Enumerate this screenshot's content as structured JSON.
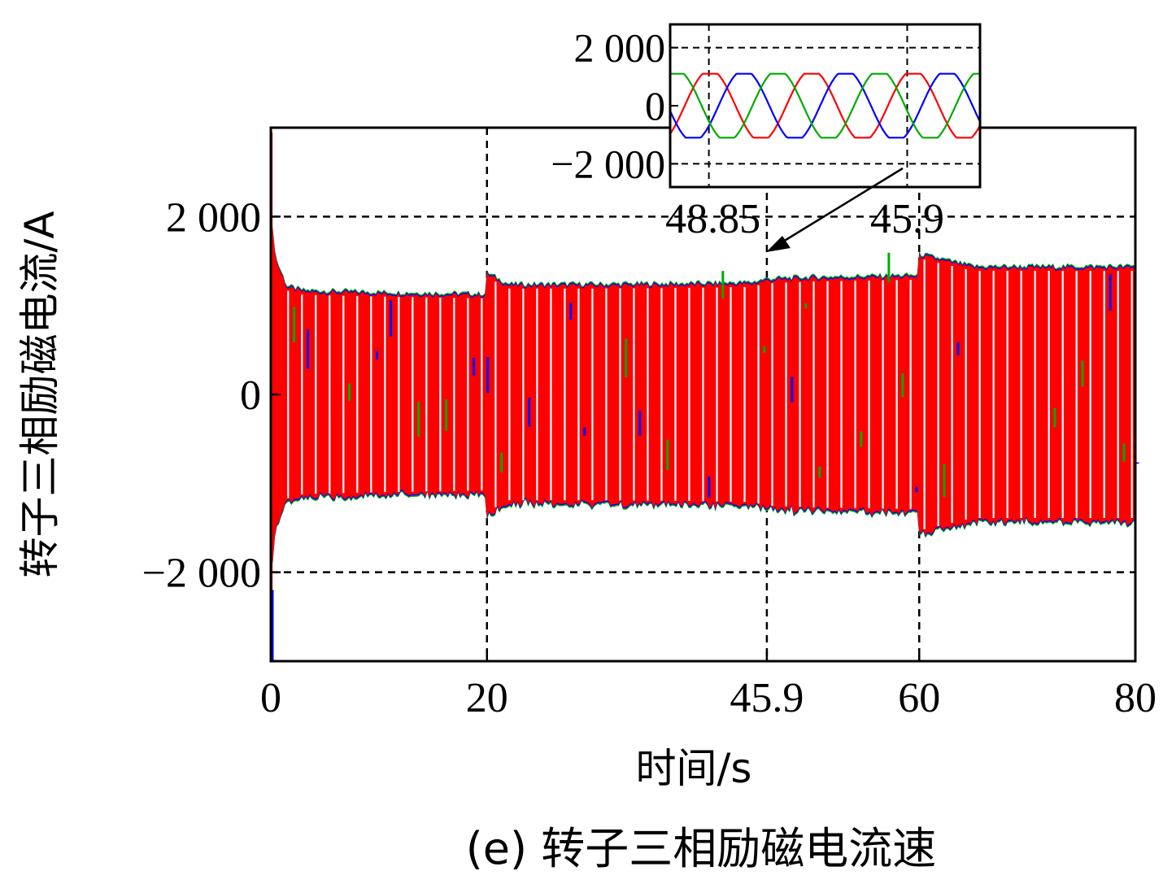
{
  "chart_data": {
    "type": "line",
    "caption": "(e) 转子三相励磁电流速",
    "xlabel": "时间/s",
    "ylabel": "转子三相励磁电流/A",
    "x_ticks": [
      {
        "value": 0,
        "label": "0"
      },
      {
        "value": 20,
        "label": "20"
      },
      {
        "value": 45.9,
        "label": "45.9"
      },
      {
        "value": 60,
        "label": "60"
      },
      {
        "value": 80,
        "label": "80"
      }
    ],
    "y_ticks": [
      {
        "value": 2000,
        "label": "2 000"
      },
      {
        "value": 0,
        "label": "0"
      },
      {
        "value": -2000,
        "label": "−2 000"
      }
    ],
    "xlim": [
      0,
      80
    ],
    "ylim": [
      -3000,
      3000
    ],
    "grid": true,
    "series": [
      {
        "color": "#ff0000"
      },
      {
        "color": "#0000ff"
      },
      {
        "color": "#00aa00"
      }
    ],
    "envelope": {
      "t": [
        0,
        0.5,
        1.5,
        3,
        10,
        19.9,
        20,
        22,
        30,
        40,
        44.5,
        45.9,
        50,
        59.9,
        60,
        65,
        70,
        80
      ],
      "amplitude": [
        2000,
        1500,
        1200,
        1150,
        1130,
        1110,
        1350,
        1220,
        1220,
        1230,
        1240,
        1280,
        1300,
        1320,
        1560,
        1420,
        1420,
        1420
      ]
    },
    "inset": {
      "x_ticks": [
        {
          "label": "48.85"
        },
        {
          "label": "45.9"
        }
      ],
      "y_ticks": [
        {
          "value": 2000,
          "label": "2 000"
        },
        {
          "value": 0,
          "label": "0"
        },
        {
          "value": -2000,
          "label": "−2 000"
        }
      ],
      "ylim": [
        -2800,
        2800
      ],
      "amplitude": 1100,
      "cycles": 3.05,
      "grid": true
    }
  }
}
